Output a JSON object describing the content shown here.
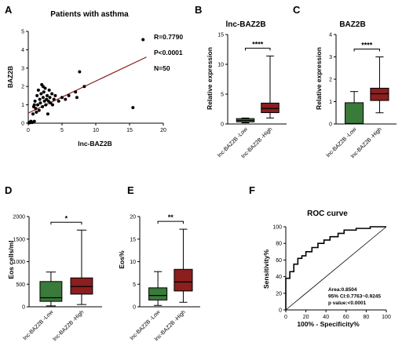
{
  "chart_data": [
    {
      "panel": "A",
      "type": "scatter",
      "title": "Patients with asthma",
      "xlabel": "lnc-BAZ2B",
      "ylabel": "BAZ2B",
      "xlim": [
        0,
        20
      ],
      "ylim": [
        0,
        5
      ],
      "xticks": [
        "0",
        "5",
        "10",
        "15",
        "20"
      ],
      "yticks": [
        "0",
        "1",
        "2",
        "3",
        "4",
        "5"
      ],
      "annotations": [
        "R=0.7790",
        "P<0.0001",
        "N=50"
      ],
      "points": [
        [
          0.1,
          0.02
        ],
        [
          0.2,
          0.05
        ],
        [
          0.3,
          0.03
        ],
        [
          0.35,
          0.08
        ],
        [
          0.5,
          0.06
        ],
        [
          0.6,
          0.04
        ],
        [
          0.9,
          0.1
        ],
        [
          0.4,
          0.1
        ],
        [
          0.7,
          0.5
        ],
        [
          0.8,
          0.9
        ],
        [
          1.0,
          1.2
        ],
        [
          1.1,
          0.8
        ],
        [
          1.2,
          0.6
        ],
        [
          1.3,
          1.5
        ],
        [
          1.4,
          1.0
        ],
        [
          1.5,
          1.8
        ],
        [
          1.6,
          0.7
        ],
        [
          1.7,
          1.3
        ],
        [
          1.8,
          1.1
        ],
        [
          1.9,
          1.6
        ],
        [
          2.0,
          2.1
        ],
        [
          2.1,
          0.9
        ],
        [
          2.2,
          1.4
        ],
        [
          2.3,
          1.7
        ],
        [
          2.4,
          1.2
        ],
        [
          2.5,
          1.9
        ],
        [
          2.6,
          1.0
        ],
        [
          2.7,
          1.3
        ],
        [
          2.8,
          1.5
        ],
        [
          2.9,
          0.5
        ],
        [
          3.0,
          1.2
        ],
        [
          3.1,
          1.8
        ],
        [
          3.2,
          1.4
        ],
        [
          3.3,
          1.1
        ],
        [
          3.5,
          1.6
        ],
        [
          3.8,
          1.3
        ],
        [
          4.0,
          1.5
        ],
        [
          4.5,
          1.2
        ],
        [
          5.0,
          1.4
        ],
        [
          5.5,
          1.3
        ],
        [
          6.0,
          1.5
        ],
        [
          7.0,
          1.7
        ],
        [
          7.2,
          1.4
        ],
        [
          7.6,
          2.8
        ],
        [
          8.3,
          2.0
        ],
        [
          15.5,
          0.85
        ],
        [
          17.0,
          4.55
        ],
        [
          0.9,
          1.0
        ],
        [
          2.2,
          2.0
        ],
        [
          3.6,
          1.0
        ]
      ],
      "fit_line": {
        "x": [
          0,
          17.5
        ],
        "y": [
          0.55,
          3.6
        ]
      }
    },
    {
      "panel": "B",
      "type": "box",
      "title": "lnc-BAZ2B",
      "ylabel": "Relative expression",
      "ylim": [
        0,
        15
      ],
      "yticks": [
        "0",
        "5",
        "10",
        "15"
      ],
      "categories": [
        "lnc-BAZ2B -Low",
        "lnc-BAZ2B -High"
      ],
      "boxes": [
        {
          "min": 0.2,
          "q1": 0.35,
          "median": 0.6,
          "q3": 0.9,
          "max": 1.0,
          "color": "#3a7a3a"
        },
        {
          "min": 1.0,
          "q1": 1.9,
          "median": 2.6,
          "q3": 3.5,
          "max": 11.4,
          "color": "#8b1e1e"
        }
      ],
      "significance": "****"
    },
    {
      "panel": "C",
      "type": "box",
      "title": "BAZ2B",
      "ylabel": "Relative expression",
      "ylim": [
        0,
        4
      ],
      "yticks": [
        "0",
        "1",
        "2",
        "3",
        "4"
      ],
      "categories": [
        "lnc-BAZ2B -Low",
        "lnc-BAZ2B -High"
      ],
      "boxes": [
        {
          "min": 0.0,
          "q1": 0.0,
          "median": 0.02,
          "q3": 0.95,
          "max": 1.45,
          "color": "#3a7a3a"
        },
        {
          "min": 0.5,
          "q1": 1.05,
          "median": 1.35,
          "q3": 1.6,
          "max": 3.0,
          "color": "#8b1e1e"
        }
      ],
      "significance": "****"
    },
    {
      "panel": "D",
      "type": "box",
      "title": "",
      "ylabel": "Eos cells/ml",
      "ylim": [
        0,
        2000
      ],
      "yticks": [
        "0",
        "500",
        "1000",
        "1500",
        "2000"
      ],
      "categories": [
        "lnc-BAZ2B -Low",
        "lnc-BAZ2B -High"
      ],
      "boxes": [
        {
          "min": 20,
          "q1": 120,
          "median": 200,
          "q3": 560,
          "max": 770,
          "color": "#3a7a3a"
        },
        {
          "min": 50,
          "q1": 280,
          "median": 450,
          "q3": 640,
          "max": 1700,
          "color": "#8b1e1e"
        }
      ],
      "significance": "*"
    },
    {
      "panel": "E",
      "type": "box",
      "title": "",
      "ylabel": "Eos%",
      "ylim": [
        0,
        20
      ],
      "yticks": [
        "0",
        "5",
        "10",
        "15",
        "20"
      ],
      "categories": [
        "lnc-BAZ2B -Low",
        "lnc-BAZ2B -High"
      ],
      "boxes": [
        {
          "min": 0.3,
          "q1": 1.5,
          "median": 2.5,
          "q3": 4.2,
          "max": 7.8,
          "color": "#3a7a3a"
        },
        {
          "min": 1.0,
          "q1": 3.5,
          "median": 5.5,
          "q3": 8.3,
          "max": 17.2,
          "color": "#8b1e1e"
        }
      ],
      "significance": "**"
    },
    {
      "panel": "F",
      "type": "line",
      "title": "ROC curve",
      "xlabel": "100% - Specificity%",
      "ylabel": "Sensitivity%",
      "xlim": [
        0,
        100
      ],
      "ylim": [
        0,
        100
      ],
      "xticks": [
        "0",
        "20",
        "40",
        "60",
        "80",
        "100"
      ],
      "yticks": [
        "0",
        "20",
        "40",
        "60",
        "80",
        "100"
      ],
      "annotations": [
        "Area:0.8504",
        "95% CI:0.7763~0.9245",
        "p value:<0.0001"
      ],
      "roc_points": [
        [
          0,
          0
        ],
        [
          0,
          25
        ],
        [
          0,
          38
        ],
        [
          4,
          38
        ],
        [
          4,
          46
        ],
        [
          8,
          46
        ],
        [
          8,
          55
        ],
        [
          12,
          55
        ],
        [
          12,
          62
        ],
        [
          16,
          62
        ],
        [
          16,
          65
        ],
        [
          20,
          65
        ],
        [
          20,
          70
        ],
        [
          26,
          70
        ],
        [
          26,
          75
        ],
        [
          32,
          75
        ],
        [
          32,
          80
        ],
        [
          38,
          80
        ],
        [
          38,
          84
        ],
        [
          44,
          84
        ],
        [
          44,
          88
        ],
        [
          52,
          88
        ],
        [
          52,
          92
        ],
        [
          58,
          92
        ],
        [
          58,
          96
        ],
        [
          70,
          96
        ],
        [
          70,
          98
        ],
        [
          84,
          98
        ],
        [
          84,
          100
        ],
        [
          100,
          100
        ]
      ],
      "diagonal": true
    }
  ]
}
